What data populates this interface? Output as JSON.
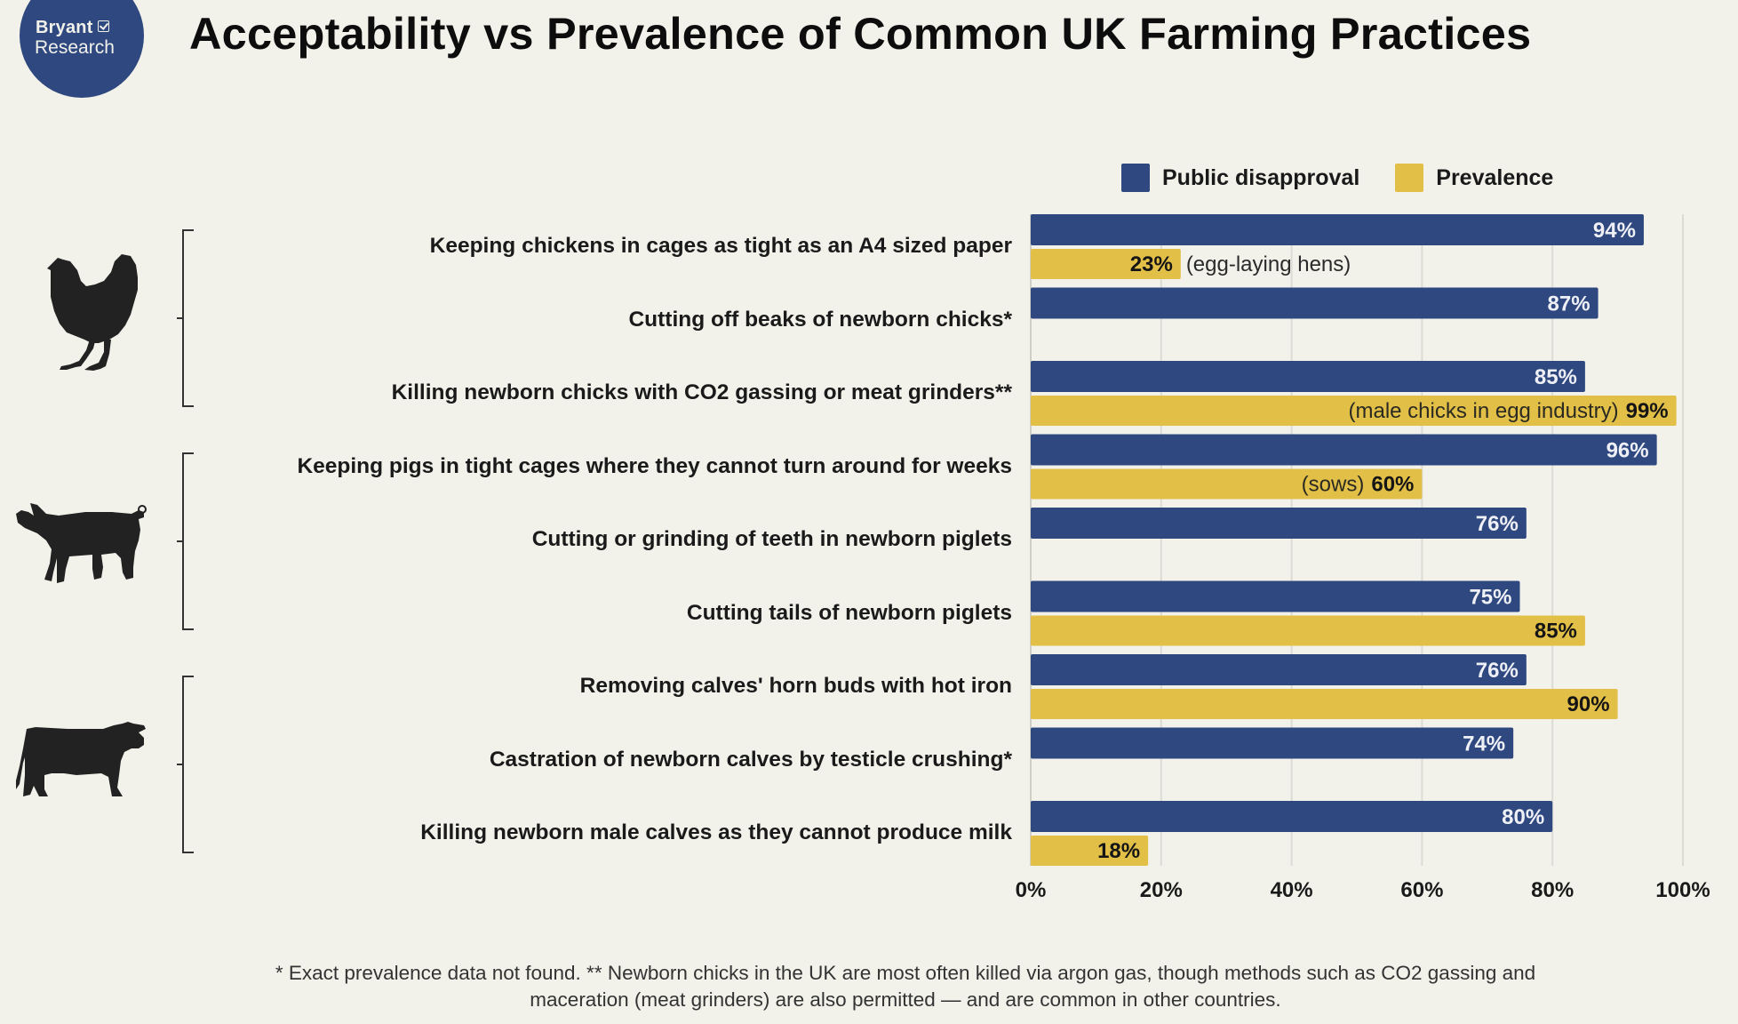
{
  "logo": {
    "line1": "Bryant",
    "line2": "Research",
    "icon": "checkbox-icon"
  },
  "title": "Acceptability vs Prevalence of Common UK Farming Practices",
  "colors": {
    "disapproval": "#2f4880",
    "prevalence": "#e2bf47",
    "background": "#f2f2eb",
    "grid": "#dcdcd5"
  },
  "groups": [
    {
      "name": "chicken",
      "icon": "chicken-icon"
    },
    {
      "name": "pig",
      "icon": "pig-icon"
    },
    {
      "name": "cow",
      "icon": "cow-icon"
    }
  ],
  "chart_data": {
    "type": "bar",
    "orientation": "horizontal",
    "title": "Acceptability vs Prevalence of Common UK Farming Practices",
    "xlabel": "",
    "ylabel": "",
    "xlim": [
      0,
      100
    ],
    "grid": true,
    "legend_position": "top-right",
    "x_ticks": [
      "0%",
      "20%",
      "40%",
      "60%",
      "80%",
      "100%"
    ],
    "categories": [
      "Keeping chickens in cages as tight as an A4 sized paper",
      "Cutting off beaks of newborn chicks*",
      "Killing newborn chicks with CO2 gassing or meat grinders**",
      "Keeping pigs in tight cages where they cannot turn around for weeks",
      "Cutting or grinding of teeth in newborn piglets",
      "Cutting tails of newborn piglets",
      "Removing calves' horn buds with hot iron",
      "Castration of newborn calves by testicle crushing*",
      "Killing newborn male calves as they cannot produce milk"
    ],
    "series": [
      {
        "name": "Public disapproval",
        "values": [
          94,
          87,
          85,
          96,
          76,
          75,
          76,
          74,
          80
        ],
        "labels": [
          "94%",
          "87%",
          "85%",
          "96%",
          "76%",
          "75%",
          "76%",
          "74%",
          "80%"
        ]
      },
      {
        "name": "Prevalence",
        "values": [
          23,
          null,
          99,
          60,
          null,
          85,
          90,
          null,
          18
        ],
        "labels": [
          "23%",
          null,
          "99%",
          "60%",
          null,
          "85%",
          "90%",
          null,
          "18%"
        ],
        "notes": [
          "(egg-laying hens)",
          null,
          "(male chicks in egg industry)",
          "(sows)",
          null,
          null,
          null,
          null,
          null
        ]
      }
    ]
  },
  "footnote": {
    "line1": "* Exact prevalence data not found.  ** Newborn chicks in the UK are most often killed via argon gas, though methods such as CO2 gassing and",
    "line2": "maceration (meat grinders) are also permitted — and are common in other countries."
  }
}
